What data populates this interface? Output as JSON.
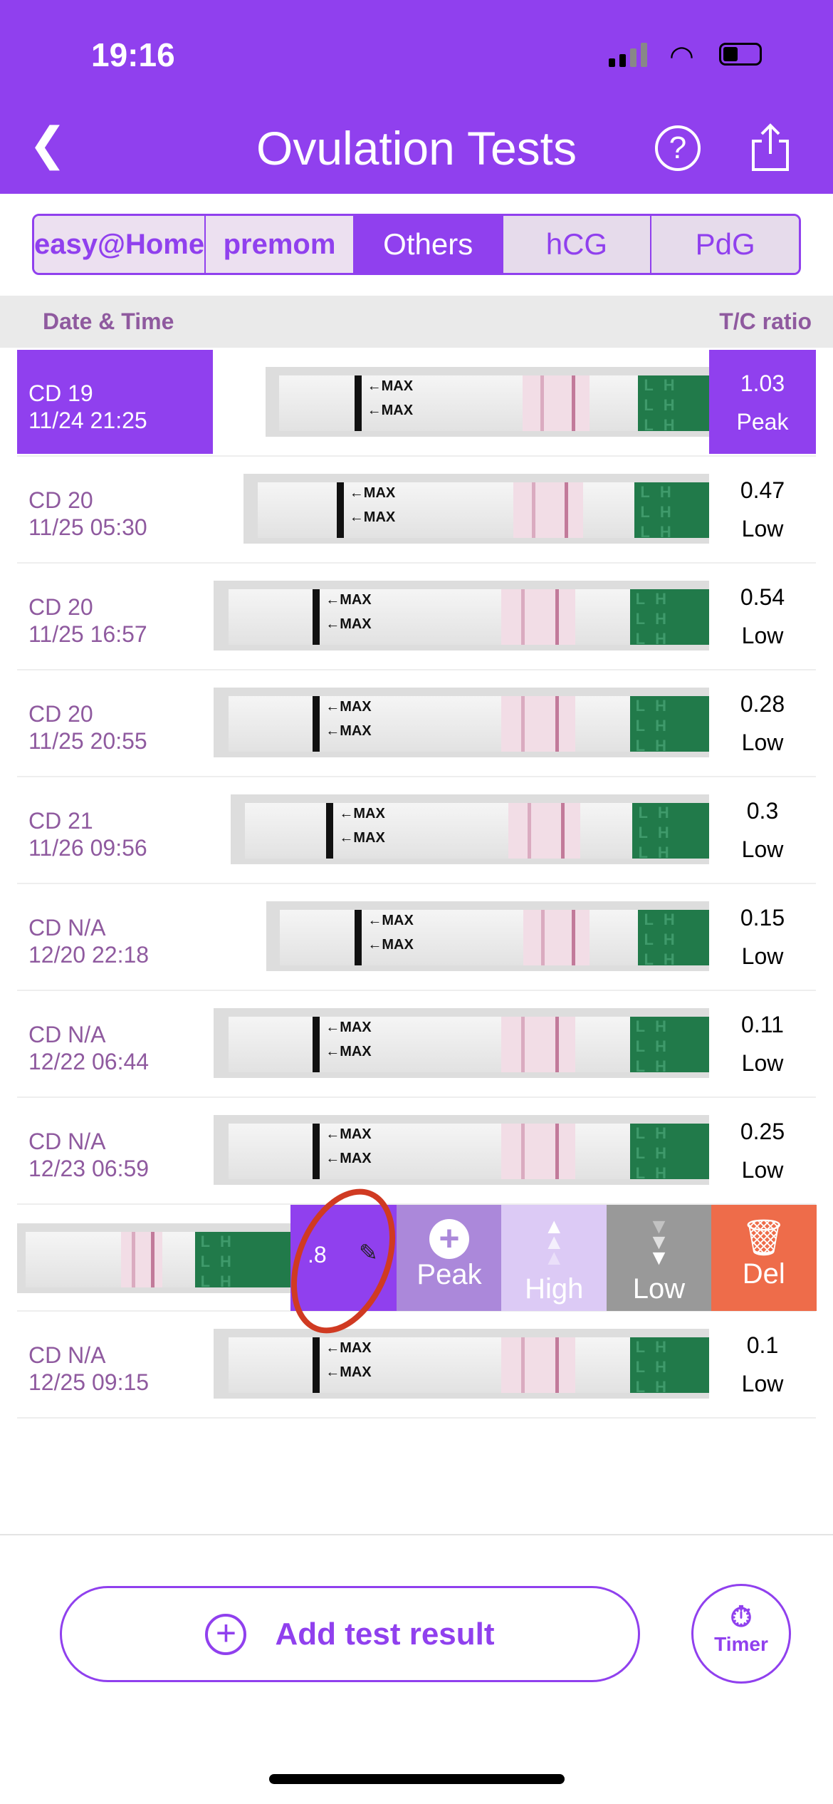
{
  "status_bar": {
    "time": "19:16",
    "battery_level": 0.3
  },
  "header": {
    "title": "Ovulation Tests",
    "back_icon": "chevron-left-icon",
    "help_icon": "question-circle-icon",
    "share_icon": "share-icon"
  },
  "tabs": [
    {
      "label": "easy@Home",
      "type": "logo"
    },
    {
      "label": "premom",
      "type": "logo"
    },
    {
      "label": "Others",
      "active": true
    },
    {
      "label": "hCG"
    },
    {
      "label": "PdG"
    }
  ],
  "table": {
    "col_date": "Date & Time",
    "col_ratio": "T/C ratio"
  },
  "rows": [
    {
      "cd": "CD 19",
      "datetime": "11/24 21:25",
      "ratio": "1.03",
      "level": "Peak",
      "selected": true
    },
    {
      "cd": "CD 20",
      "datetime": "11/25 05:30",
      "ratio": "0.47",
      "level": "Low"
    },
    {
      "cd": "CD 20",
      "datetime": "11/25 16:57",
      "ratio": "0.54",
      "level": "Low"
    },
    {
      "cd": "CD 20",
      "datetime": "11/25 20:55",
      "ratio": "0.28",
      "level": "Low"
    },
    {
      "cd": "CD 21",
      "datetime": "11/26 09:56",
      "ratio": "0.3",
      "level": "Low"
    },
    {
      "cd": "CD N/A",
      "datetime": "12/20 22:18",
      "ratio": "0.15",
      "level": "Low"
    },
    {
      "cd": "CD N/A",
      "datetime": "12/22 06:44",
      "ratio": "0.11",
      "level": "Low"
    },
    {
      "cd": "CD N/A",
      "datetime": "12/23 06:59",
      "ratio": "0.25",
      "level": "Low"
    },
    {
      "swiped": true,
      "ratio_partial": ".8"
    },
    {
      "cd": "CD N/A",
      "datetime": "12/25 09:15",
      "ratio": "0.1",
      "level": "Low"
    }
  ],
  "swipe_actions": [
    {
      "label": "Peak",
      "icon": "plus-circle-icon",
      "color": "#ab88da"
    },
    {
      "label": "High",
      "icon": "triple-up-arrow-icon",
      "color": "#dccaf5"
    },
    {
      "label": "Low",
      "icon": "triple-down-arrow-icon",
      "color": "#999999"
    },
    {
      "label": "Del",
      "icon": "trash-icon",
      "color": "#ee6c4a"
    }
  ],
  "strip": {
    "max_label": "←MAX",
    "lh_label": "LH"
  },
  "footer": {
    "add_label": "Add test result",
    "timer_label": "Timer"
  },
  "colors": {
    "accent": "#9040ee",
    "text_purple": "#8f5a9f",
    "annotation": "#d03a22"
  }
}
